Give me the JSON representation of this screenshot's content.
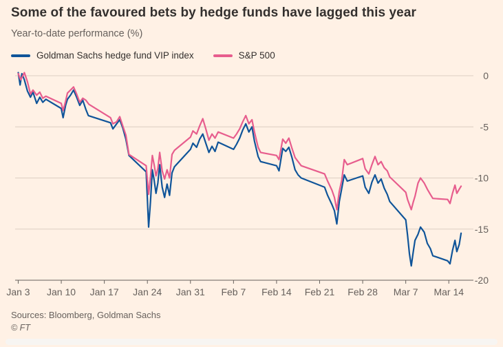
{
  "header": {
    "title": "Some of the favoured bets by hedge funds have lagged this year",
    "subtitle": "Year-to-date performance (%)"
  },
  "legend": [
    {
      "label": "Goldman Sachs hedge fund VIP index",
      "color": "#0F5499"
    },
    {
      "label": "S&P 500",
      "color": "#E75D8D"
    }
  ],
  "footer": {
    "sources": "Sources: Bloomberg, Goldman Sachs",
    "copyright": "© FT"
  },
  "chart_data": {
    "type": "line",
    "title": "Some of the favoured bets by hedge funds have lagged this year",
    "ylabel": "Year-to-date performance (%)",
    "ylim": [
      -20,
      1
    ],
    "yticks": [
      0,
      -5,
      -10,
      -15,
      -20
    ],
    "x_unit": "calendar days since Jan 3",
    "xlim": [
      -0.5,
      74
    ],
    "grid": "horizontal",
    "legend_position": "top-left",
    "xticks": [
      {
        "x": 0,
        "label": "Jan 3"
      },
      {
        "x": 7,
        "label": "Jan 10"
      },
      {
        "x": 14,
        "label": "Jan 17"
      },
      {
        "x": 21,
        "label": "Jan 24"
      },
      {
        "x": 28,
        "label": "Jan 31"
      },
      {
        "x": 35,
        "label": "Feb 7"
      },
      {
        "x": 42,
        "label": "Feb 14"
      },
      {
        "x": 49,
        "label": "Feb 21"
      },
      {
        "x": 56,
        "label": "Feb 28"
      },
      {
        "x": 63,
        "label": "Mar 7"
      },
      {
        "x": 70,
        "label": "Mar 14"
      }
    ],
    "series": [
      {
        "name": "Goldman Sachs hedge fund VIP index",
        "color": "#0F5499",
        "points": [
          [
            0,
            0.3
          ],
          [
            0.3,
            -0.9
          ],
          [
            0.6,
            0.2
          ],
          [
            1,
            -0.4
          ],
          [
            1.5,
            -1.5
          ],
          [
            2,
            -2.1
          ],
          [
            2.4,
            -1.6
          ],
          [
            3,
            -2.7
          ],
          [
            3.5,
            -2.1
          ],
          [
            4,
            -2.6
          ],
          [
            4.5,
            -2.3
          ],
          [
            7,
            -3.2
          ],
          [
            7.3,
            -4.1
          ],
          [
            7.7,
            -2.9
          ],
          [
            8,
            -2.3
          ],
          [
            8.5,
            -1.9
          ],
          [
            9,
            -1.4
          ],
          [
            9.5,
            -2.1
          ],
          [
            10,
            -2.9
          ],
          [
            10.5,
            -2.4
          ],
          [
            11,
            -3.3
          ],
          [
            11.4,
            -3.9
          ],
          [
            15,
            -4.6
          ],
          [
            15.4,
            -5.2
          ],
          [
            16,
            -4.7
          ],
          [
            16.5,
            -4.3
          ],
          [
            17,
            -5.1
          ],
          [
            17.5,
            -6.2
          ],
          [
            18,
            -7.8
          ],
          [
            20.8,
            -9.4
          ],
          [
            21.2,
            -14.8
          ],
          [
            21.5,
            -12.3
          ],
          [
            21.8,
            -9.2
          ],
          [
            22.1,
            -10.2
          ],
          [
            22.4,
            -11.5
          ],
          [
            22.7,
            -10.5
          ],
          [
            23,
            -8.7
          ],
          [
            23.4,
            -10.9
          ],
          [
            23.8,
            -11.9
          ],
          [
            24.2,
            -10.6
          ],
          [
            24.6,
            -11.7
          ],
          [
            25,
            -9.5
          ],
          [
            25.4,
            -8.9
          ],
          [
            28,
            -7.2
          ],
          [
            28.4,
            -6.6
          ],
          [
            29,
            -7.0
          ],
          [
            29.5,
            -6.2
          ],
          [
            30,
            -5.7
          ],
          [
            30.5,
            -6.6
          ],
          [
            31,
            -7.5
          ],
          [
            31.5,
            -6.9
          ],
          [
            32,
            -7.4
          ],
          [
            32.5,
            -6.5
          ],
          [
            35,
            -7.2
          ],
          [
            35.5,
            -6.7
          ],
          [
            36,
            -6.1
          ],
          [
            36.5,
            -5.3
          ],
          [
            37,
            -4.7
          ],
          [
            37.5,
            -5.5
          ],
          [
            38,
            -5.0
          ],
          [
            38.4,
            -6.4
          ],
          [
            39,
            -7.9
          ],
          [
            39.4,
            -8.4
          ],
          [
            42,
            -8.8
          ],
          [
            42.4,
            -9.3
          ],
          [
            43,
            -7.1
          ],
          [
            43.5,
            -7.4
          ],
          [
            44,
            -7.0
          ],
          [
            44.5,
            -8.0
          ],
          [
            45,
            -9.2
          ],
          [
            45.5,
            -9.7
          ],
          [
            46,
            -10.0
          ],
          [
            49.8,
            -10.9
          ],
          [
            50.3,
            -11.7
          ],
          [
            51,
            -12.6
          ],
          [
            51.4,
            -13.2
          ],
          [
            51.8,
            -14.5
          ],
          [
            52.2,
            -12.3
          ],
          [
            52.6,
            -11.0
          ],
          [
            53,
            -9.7
          ],
          [
            53.5,
            -10.3
          ],
          [
            56,
            -9.8
          ],
          [
            56.4,
            -10.9
          ],
          [
            57,
            -11.5
          ],
          [
            57.5,
            -10.4
          ],
          [
            58,
            -9.7
          ],
          [
            58.5,
            -10.5
          ],
          [
            59,
            -10.1
          ],
          [
            59.5,
            -11.0
          ],
          [
            60,
            -11.6
          ],
          [
            60.4,
            -12.3
          ],
          [
            63,
            -14.1
          ],
          [
            63.3,
            -15.6
          ],
          [
            63.6,
            -17.4
          ],
          [
            63.9,
            -18.6
          ],
          [
            64.2,
            -17.3
          ],
          [
            64.5,
            -16.1
          ],
          [
            65,
            -15.5
          ],
          [
            65.4,
            -14.8
          ],
          [
            66,
            -15.3
          ],
          [
            66.5,
            -16.4
          ],
          [
            67,
            -16.9
          ],
          [
            67.4,
            -17.6
          ],
          [
            69.8,
            -18.1
          ],
          [
            70.2,
            -18.4
          ],
          [
            70.6,
            -17.1
          ],
          [
            71,
            -16.1
          ],
          [
            71.3,
            -17.2
          ],
          [
            71.7,
            -16.5
          ],
          [
            72,
            -15.4
          ]
        ]
      },
      {
        "name": "S&P 500",
        "color": "#E75D8D",
        "points": [
          [
            0,
            0.2
          ],
          [
            0.4,
            -0.4
          ],
          [
            1,
            0.3
          ],
          [
            1.5,
            -0.6
          ],
          [
            2,
            -1.8
          ],
          [
            2.4,
            -1.4
          ],
          [
            3,
            -1.9
          ],
          [
            3.5,
            -1.6
          ],
          [
            4,
            -2.2
          ],
          [
            4.5,
            -2.0
          ],
          [
            7,
            -2.7
          ],
          [
            7.3,
            -3.4
          ],
          [
            7.7,
            -2.5
          ],
          [
            8,
            -1.7
          ],
          [
            8.5,
            -1.4
          ],
          [
            9,
            -1.1
          ],
          [
            9.5,
            -1.8
          ],
          [
            10,
            -2.6
          ],
          [
            10.5,
            -2.2
          ],
          [
            11,
            -2.4
          ],
          [
            11.5,
            -2.8
          ],
          [
            15,
            -4.1
          ],
          [
            15.4,
            -4.7
          ],
          [
            16,
            -4.5
          ],
          [
            16.5,
            -4.0
          ],
          [
            17,
            -4.9
          ],
          [
            17.5,
            -5.8
          ],
          [
            18,
            -7.7
          ],
          [
            20.8,
            -8.8
          ],
          [
            21.2,
            -11.6
          ],
          [
            21.5,
            -9.9
          ],
          [
            21.8,
            -7.8
          ],
          [
            22.1,
            -8.7
          ],
          [
            22.4,
            -9.8
          ],
          [
            22.7,
            -9.1
          ],
          [
            23,
            -7.5
          ],
          [
            23.4,
            -9.3
          ],
          [
            23.8,
            -10.1
          ],
          [
            24.2,
            -9.2
          ],
          [
            24.6,
            -10.0
          ],
          [
            25,
            -7.7
          ],
          [
            25.4,
            -7.3
          ],
          [
            28,
            -6.0
          ],
          [
            28.4,
            -5.4
          ],
          [
            29,
            -5.7
          ],
          [
            29.5,
            -4.9
          ],
          [
            30,
            -4.2
          ],
          [
            30.5,
            -5.2
          ],
          [
            31,
            -6.3
          ],
          [
            31.5,
            -5.7
          ],
          [
            32,
            -6.1
          ],
          [
            32.5,
            -5.5
          ],
          [
            35,
            -6.1
          ],
          [
            35.5,
            -5.7
          ],
          [
            36,
            -5.2
          ],
          [
            36.5,
            -4.5
          ],
          [
            37,
            -3.9
          ],
          [
            37.5,
            -4.7
          ],
          [
            38,
            -4.3
          ],
          [
            38.4,
            -5.5
          ],
          [
            39,
            -7.0
          ],
          [
            39.4,
            -7.5
          ],
          [
            42,
            -7.8
          ],
          [
            42.4,
            -8.2
          ],
          [
            43,
            -6.2
          ],
          [
            43.5,
            -6.6
          ],
          [
            44,
            -6.1
          ],
          [
            44.5,
            -7.1
          ],
          [
            45,
            -8.0
          ],
          [
            45.5,
            -8.4
          ],
          [
            46,
            -8.8
          ],
          [
            49.8,
            -9.6
          ],
          [
            50.3,
            -10.3
          ],
          [
            51,
            -11.2
          ],
          [
            51.4,
            -11.9
          ],
          [
            51.8,
            -13.1
          ],
          [
            52.2,
            -11.3
          ],
          [
            52.6,
            -10.2
          ],
          [
            53,
            -8.2
          ],
          [
            53.5,
            -8.7
          ],
          [
            56,
            -8.1
          ],
          [
            56.4,
            -9.1
          ],
          [
            57,
            -9.6
          ],
          [
            57.5,
            -8.7
          ],
          [
            58,
            -7.9
          ],
          [
            58.5,
            -8.7
          ],
          [
            59,
            -8.4
          ],
          [
            59.5,
            -9.0
          ],
          [
            60,
            -9.3
          ],
          [
            60.4,
            -9.9
          ],
          [
            63,
            -11.4
          ],
          [
            63.3,
            -12.1
          ],
          [
            63.6,
            -12.6
          ],
          [
            63.9,
            -13.1
          ],
          [
            64.2,
            -12.4
          ],
          [
            64.5,
            -11.8
          ],
          [
            65,
            -10.5
          ],
          [
            65.4,
            -10.0
          ],
          [
            66,
            -10.5
          ],
          [
            66.5,
            -11.1
          ],
          [
            67,
            -11.6
          ],
          [
            67.4,
            -12.0
          ],
          [
            69.8,
            -12.1
          ],
          [
            70.2,
            -12.5
          ],
          [
            70.6,
            -11.5
          ],
          [
            71,
            -10.7
          ],
          [
            71.3,
            -11.5
          ],
          [
            71.7,
            -11.1
          ],
          [
            72,
            -10.8
          ]
        ]
      }
    ],
    "source": "Sources: Bloomberg, Goldman Sachs"
  }
}
